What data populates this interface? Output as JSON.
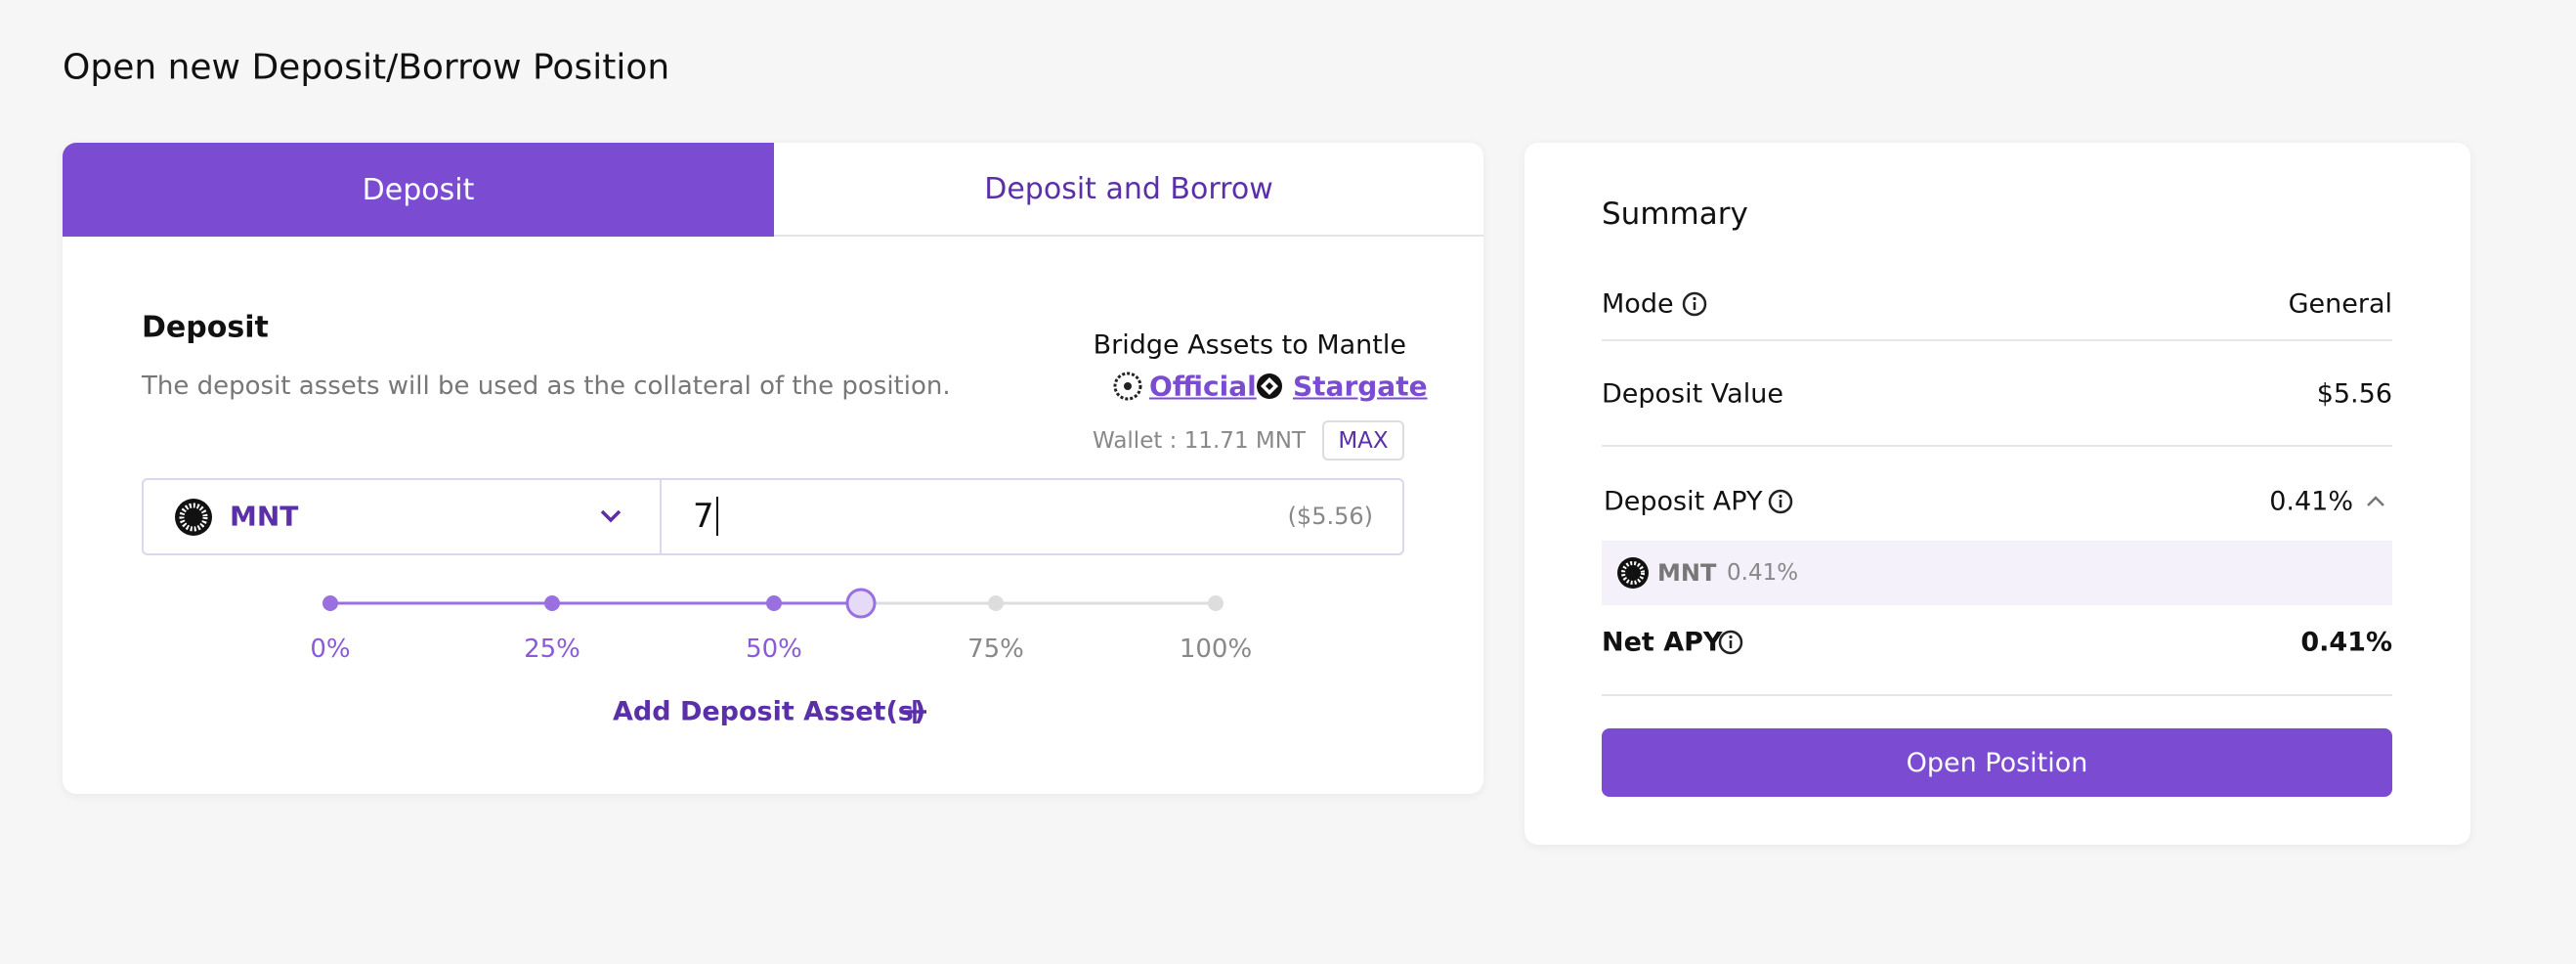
{
  "page_title": "Open new Deposit/Borrow Position",
  "tabs": [
    "Deposit",
    "Deposit and Borrow"
  ],
  "deposit": {
    "heading": "Deposit",
    "description": "The deposit assets will be used as the collateral of the position.",
    "bridge_title": "Bridge Assets to Mantle",
    "bridge_links": [
      "Official",
      "Stargate"
    ],
    "wallet": "Wallet : 11.71 MNT",
    "max": "MAX",
    "asset": "MNT",
    "amount": "7",
    "amount_usd": "($5.56)",
    "slider_labels": [
      "0%",
      "25%",
      "50%",
      "75%",
      "100%"
    ],
    "add_asset": "Add Deposit Asset(s)"
  },
  "summary": {
    "title": "Summary",
    "mode_label": "Mode",
    "mode_value": "General",
    "deposit_value_label": "Deposit Value",
    "deposit_value": "$5.56",
    "deposit_apy_label": "Deposit APY",
    "deposit_apy": "0.41%",
    "apy_asset": "MNT",
    "apy_asset_value": "0.41%",
    "net_apy_label": "Net APY",
    "net_apy": "0.41%",
    "button": "Open Position"
  }
}
